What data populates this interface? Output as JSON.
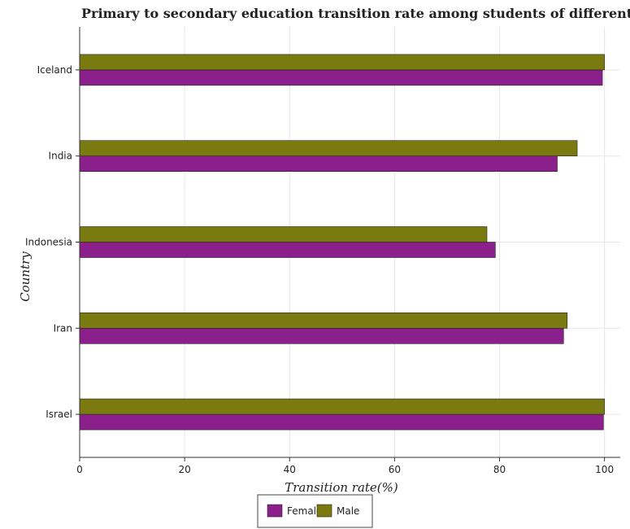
{
  "chart_data": {
    "type": "bar",
    "orientation": "horizontal",
    "title": "Primary to secondary education transition rate among students of different countries",
    "xlabel": "Transition rate(%)",
    "ylabel": "Country",
    "categories": [
      "Iceland",
      "India",
      "Indonesia",
      "Iran",
      "Israel"
    ],
    "series": [
      {
        "name": "Female",
        "color": "#8B1F8B",
        "values": [
          99.6,
          91.0,
          79.2,
          92.2,
          99.8
        ]
      },
      {
        "name": "Male",
        "color": "#7A7A10",
        "values": [
          100.0,
          94.8,
          77.6,
          92.9,
          100.0
        ]
      }
    ],
    "xlim": [
      0,
      103
    ],
    "xticks": [
      0,
      20,
      40,
      60,
      80,
      100
    ],
    "grid": true,
    "legend_position": "bottom-center"
  }
}
